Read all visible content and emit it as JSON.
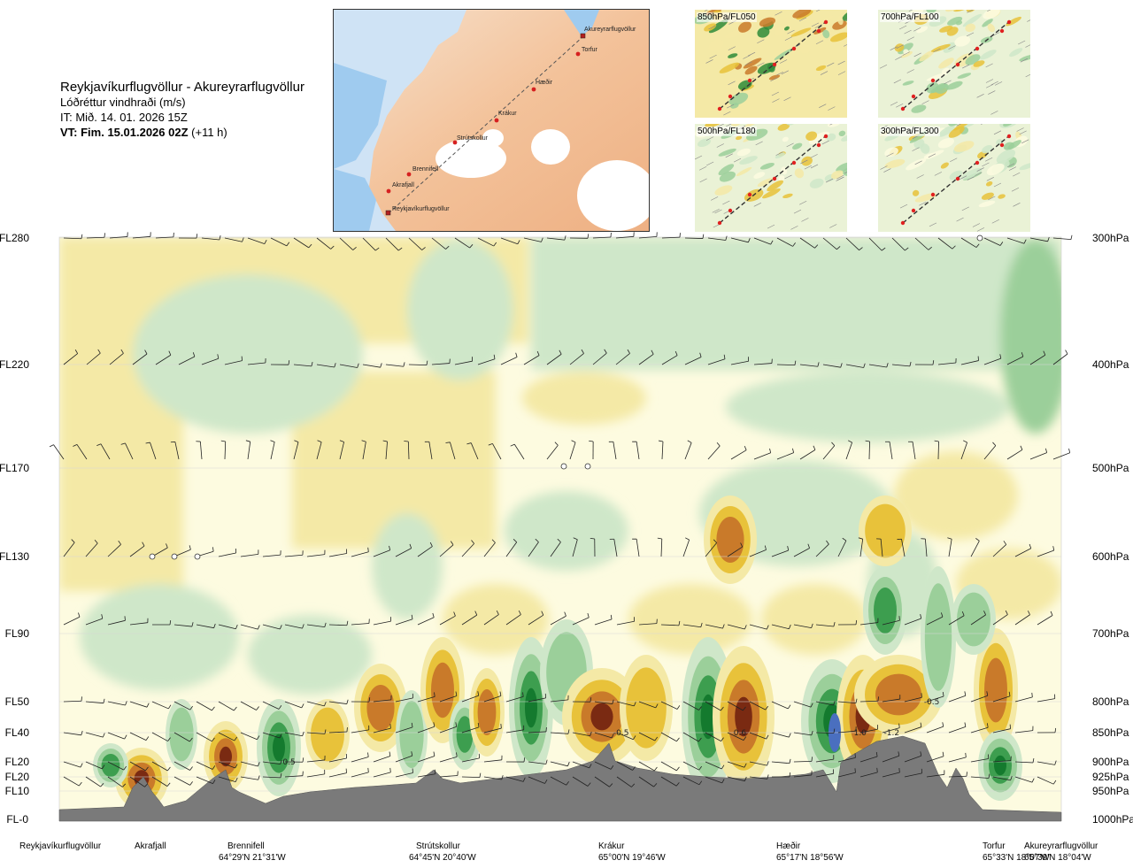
{
  "title": {
    "route": "Reykjavíkurflugvöllur - Akureyrarflugvöllur",
    "quantity": "Lóðréttur vindhraði (m/s)",
    "init_time": "IT: Mið. 14. 01. 2026 15Z",
    "valid_time": "VT: Fim. 15.01.2026 02Z",
    "lead": "(+11 h)"
  },
  "route_map": {
    "points": [
      "Akureyrarflugvöllur",
      "Torfur",
      "Hæðir",
      "Krákur",
      "Strútskollur",
      "Brennifell",
      "Akrafjall",
      "Reykjavíkurflugvöllur"
    ]
  },
  "mini_maps": [
    {
      "label": "850hPa/FL050"
    },
    {
      "label": "700hPa/FL100"
    },
    {
      "label": "500hPa/FL180"
    },
    {
      "label": "300hPa/FL300"
    }
  ],
  "levels": [
    {
      "fl": "FL280",
      "hpa": "300hPa"
    },
    {
      "fl": "FL220",
      "hpa": "400hPa"
    },
    {
      "fl": "FL170",
      "hpa": "500hPa"
    },
    {
      "fl": "FL130",
      "hpa": "600hPa"
    },
    {
      "fl": "FL90",
      "hpa": "700hPa"
    },
    {
      "fl": "FL50",
      "hpa": "800hPa"
    },
    {
      "fl": "FL40",
      "hpa": "850hPa"
    },
    {
      "fl": "FL20",
      "hpa": "900hPa"
    },
    {
      "fl": "FL20",
      "hpa": "925hPa"
    },
    {
      "fl": "FL10",
      "hpa": "950hPa"
    },
    {
      "fl": "FL-0",
      "hpa": "1000hPa"
    }
  ],
  "locations": [
    {
      "name": "Reykjavíkurflugvöllur",
      "coord": ""
    },
    {
      "name": "Akrafjall",
      "coord": ""
    },
    {
      "name": "Brennifell",
      "coord": "64°29'N 21°31'W"
    },
    {
      "name": "Strútskollur",
      "coord": "64°45'N 20°40'W"
    },
    {
      "name": "Krákur",
      "coord": "65°00'N 19°46'W"
    },
    {
      "name": "Hæðir",
      "coord": "65°17'N 18°56'W"
    },
    {
      "name": "Torfur",
      "coord": "65°33'N 18°07'W"
    },
    {
      "name": "Akureyrarflugvöllur",
      "coord": "65°39'N 18°04'W"
    }
  ],
  "chart_data": {
    "type": "heatmap",
    "title": "Lóðréttur vindhraði (m/s)",
    "x_axis": "route distance (Reykjavíkurflugvöllur → Akureyrarflugvöllur)",
    "y_axis_left": [
      "FL-0",
      "FL10",
      "FL20",
      "FL20",
      "FL40",
      "FL50",
      "FL90",
      "FL130",
      "FL170",
      "FL220",
      "FL280"
    ],
    "y_axis_right": [
      "1000hPa",
      "950hPa",
      "925hPa",
      "900hPa",
      "850hPa",
      "800hPa",
      "700hPa",
      "600hPa",
      "500hPa",
      "400hPa",
      "300hPa"
    ],
    "colors": {
      "down_strong": "#7a2a12",
      "down_med": "#c97a2a",
      "down_weak": "#e8c23a",
      "down_faint": "#f4e9a6",
      "neutral": "#fdfbe0",
      "up_faint": "#cfe7c9",
      "up_weak": "#9bcf9a",
      "up_med": "#3d9e4f",
      "up_strong": "#147a2e",
      "up_extreme": "#4a6fbf",
      "terrain": "#7a7a7a"
    },
    "labeled_values": [
      {
        "label": "0.5",
        "x_km": 23,
        "level": "FL20"
      },
      {
        "label": "-0.5",
        "x_km": 56,
        "level": "FL40"
      },
      {
        "label": "0.6",
        "x_km": 68,
        "level": "FL40"
      },
      {
        "label": "1.0",
        "x_km": 80,
        "level": "FL40"
      },
      {
        "label": "-1.2",
        "x_km": 83,
        "level": "FL40"
      },
      {
        "label": "-0.5",
        "x_km": 87,
        "level": "FL50"
      }
    ]
  }
}
